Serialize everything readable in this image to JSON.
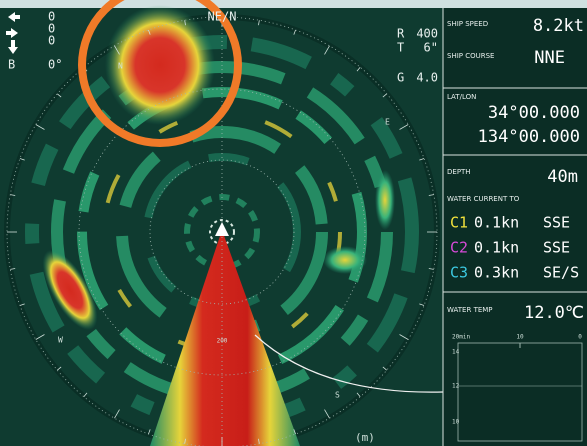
{
  "status": {
    "north_label": "NE/N",
    "indicators": [
      "0",
      "0",
      "0"
    ],
    "bearing_label": "B",
    "bearing": "0°"
  },
  "range": {
    "r_label": "R",
    "r": "400",
    "t_label": "T",
    "t": "6\"",
    "g_label": "G",
    "g": "4.0"
  },
  "sonar": {
    "compass": [
      "N",
      "E",
      "S",
      "W"
    ],
    "scale": "200",
    "unit": "(m)"
  },
  "panel": {
    "ship_speed_label": "SHIP SPEED",
    "ship_speed": "8.2kt",
    "ship_course_label": "SHIP COURSE",
    "ship_course": "NNE",
    "latlon_label": "LAT/LON",
    "lat": "34°00.000",
    "lon": "134°00.000",
    "depth_label": "DEPTH",
    "depth": "40m",
    "current_label": "WATER CURRENT TO",
    "currents": [
      [
        "C1",
        "0.1kn",
        "SSE"
      ],
      [
        "C2",
        "0.1kn",
        "SSE"
      ],
      [
        "C3",
        "0.3kn",
        "SE/S"
      ]
    ],
    "temp_label": "WATER TEMP",
    "temp": "12.0℃",
    "graph_x_labels": [
      "20min",
      "10",
      "0"
    ],
    "graph_y_labels": [
      "14",
      "12",
      "10"
    ]
  }
}
